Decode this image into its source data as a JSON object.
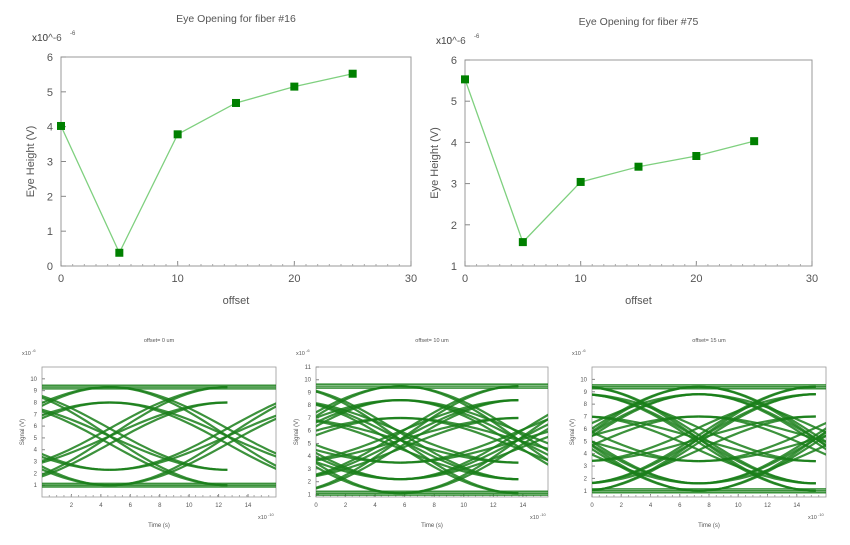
{
  "chart_data": [
    {
      "type": "line",
      "title": "Eye Opening for fiber #16",
      "xlabel": "offset",
      "ylabel": "Eye Height (V)",
      "y_multiplier": "x10^-6",
      "y_multiplier_base": "x10",
      "y_multiplier_exp": "-6",
      "xlim": [
        0,
        30
      ],
      "ylim": [
        0,
        6
      ],
      "xticks": [
        0,
        10,
        20,
        30
      ],
      "yticks": [
        0,
        1,
        2,
        3,
        4,
        5,
        6
      ],
      "x": [
        0,
        5,
        10,
        15,
        20,
        25
      ],
      "values": [
        4.02,
        0.38,
        3.78,
        4.68,
        5.15,
        5.52
      ],
      "line_color": "#7fd07f",
      "marker_color": "#008000",
      "marker": "square"
    },
    {
      "type": "line",
      "title": "Eye Opening for fiber #75",
      "xlabel": "offset",
      "ylabel": "Eye Height (V)",
      "y_multiplier": "x10^-6",
      "y_multiplier_base": "x10",
      "y_multiplier_exp": "-6",
      "xlim": [
        0,
        30
      ],
      "ylim": [
        1,
        6
      ],
      "xticks": [
        0,
        10,
        20,
        30
      ],
      "yticks": [
        1,
        2,
        3,
        4,
        5,
        6
      ],
      "x": [
        0,
        5,
        10,
        15,
        20,
        25
      ],
      "values": [
        5.53,
        1.58,
        3.04,
        3.41,
        3.67,
        4.03
      ],
      "line_color": "#7fd07f",
      "marker_color": "#008000",
      "marker": "square"
    },
    {
      "type": "line",
      "subtype": "eye-diagram",
      "title": "offset= 0 um",
      "xlabel": "Time (s)",
      "ylabel": "Signal (V)",
      "y_multiplier_base": "x10",
      "y_multiplier_exp": "-6",
      "x_multiplier_base": "x10",
      "x_multiplier_exp": "-10",
      "xlim": [
        0,
        15.9
      ],
      "ylim": [
        0,
        11
      ],
      "xticks": [
        2,
        4,
        6,
        8,
        10,
        12,
        14
      ],
      "yticks": [
        1,
        2,
        3,
        4,
        5,
        6,
        7,
        8,
        9,
        10
      ],
      "levels": [
        9.3,
        8.0,
        2.3,
        1.0
      ],
      "crossings": [
        4.6,
        12.6
      ],
      "color": "#1a7f1a"
    },
    {
      "type": "line",
      "subtype": "eye-diagram",
      "title": "offset= 10 um",
      "xlabel": "Time (s)",
      "ylabel": "Signal (V)",
      "y_multiplier_base": "x10",
      "y_multiplier_exp": "-6",
      "x_multiplier_base": "x10",
      "x_multiplier_exp": "-10",
      "xlim": [
        0,
        15.7
      ],
      "ylim": [
        0.8,
        11
      ],
      "xticks": [
        0,
        2,
        4,
        6,
        8,
        10,
        12,
        14
      ],
      "yticks": [
        1,
        2,
        3,
        4,
        5,
        6,
        7,
        8,
        9,
        10,
        11
      ],
      "levels": [
        9.5,
        8.4,
        7.0,
        3.5,
        2.2,
        1.1
      ],
      "crossings": [
        5.7,
        13.7
      ],
      "color": "#1a7f1a"
    },
    {
      "type": "line",
      "subtype": "eye-diagram",
      "title": "offset= 15 um",
      "xlabel": "Time (s)",
      "ylabel": "Signal (V)",
      "y_multiplier_base": "x10",
      "y_multiplier_exp": "-6",
      "x_multiplier_base": "x10",
      "x_multiplier_exp": "-10",
      "xlim": [
        0,
        16
      ],
      "ylim": [
        0.5,
        11
      ],
      "xticks": [
        0,
        2,
        4,
        6,
        8,
        10,
        12,
        14
      ],
      "yticks": [
        1,
        2,
        3,
        4,
        5,
        6,
        7,
        8,
        9,
        10
      ],
      "levels": [
        9.4,
        8.8,
        7.0,
        3.4,
        1.6,
        1.0
      ],
      "crossings": [
        7.3,
        15.3
      ],
      "color": "#1a7f1a"
    }
  ]
}
